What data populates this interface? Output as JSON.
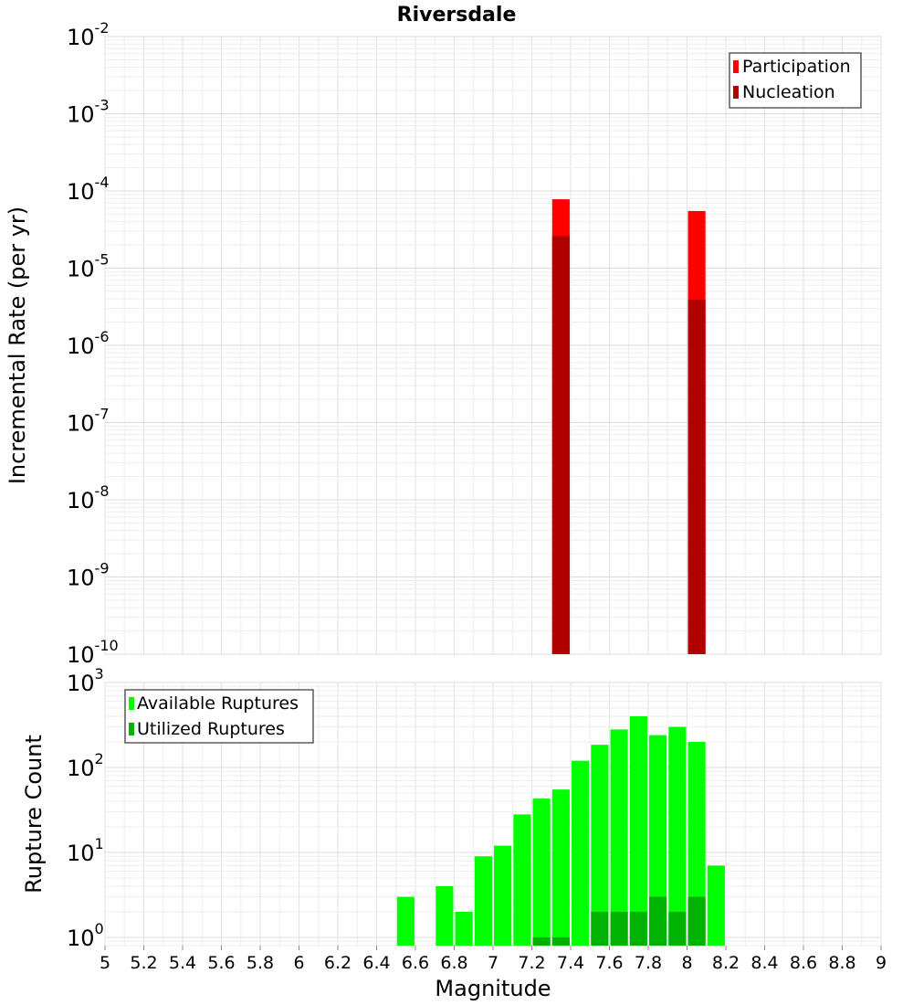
{
  "chart_data": [
    {
      "type": "bar",
      "title": "Riversdale",
      "ylabel": "Incremental Rate (per yr)",
      "xlabel": "",
      "yscale": "log",
      "ylim": [
        1e-10,
        0.01
      ],
      "xlim": [
        5,
        9
      ],
      "grid": true,
      "legend": "top-right",
      "y_ticks": [
        {
          "base": "10",
          "exp": "-10",
          "value": 1e-10
        },
        {
          "base": "10",
          "exp": "-9",
          "value": 1e-09
        },
        {
          "base": "10",
          "exp": "-8",
          "value": 1e-08
        },
        {
          "base": "10",
          "exp": "-7",
          "value": 1e-07
        },
        {
          "base": "10",
          "exp": "-6",
          "value": 1e-06
        },
        {
          "base": "10",
          "exp": "-5",
          "value": 1e-05
        },
        {
          "base": "10",
          "exp": "-4",
          "value": 0.0001
        },
        {
          "base": "10",
          "exp": "-3",
          "value": 0.001
        },
        {
          "base": "10",
          "exp": "-2",
          "value": 0.01
        }
      ],
      "bar_width": 0.09,
      "series": [
        {
          "name": "Participation",
          "color": "#ff0000",
          "points": [
            {
              "x": 7.35,
              "y": 7.8e-05
            },
            {
              "x": 8.05,
              "y": 5.5e-05
            }
          ]
        },
        {
          "name": "Nucleation",
          "color": "#b00000",
          "points": [
            {
              "x": 7.35,
              "y": 2.6e-05
            },
            {
              "x": 8.05,
              "y": 3.9e-06
            }
          ]
        }
      ]
    },
    {
      "type": "bar",
      "ylabel": "Rupture Count",
      "xlabel": "Magnitude",
      "yscale": "log",
      "ylim": [
        0.8,
        1000
      ],
      "xlim": [
        5,
        9
      ],
      "grid": true,
      "legend": "top-left",
      "x_ticks": [
        "5",
        "5.2",
        "5.4",
        "5.6",
        "5.8",
        "6",
        "6.2",
        "6.4",
        "6.6",
        "6.8",
        "7",
        "7.2",
        "7.4",
        "7.6",
        "7.8",
        "8",
        "8.2",
        "8.4",
        "8.6",
        "8.8",
        "9"
      ],
      "y_ticks": [
        {
          "base": "10",
          "exp": "0",
          "value": 1
        },
        {
          "base": "10",
          "exp": "1",
          "value": 10
        },
        {
          "base": "10",
          "exp": "2",
          "value": 100
        },
        {
          "base": "10",
          "exp": "3",
          "value": 1000
        }
      ],
      "bar_width": 0.09,
      "series": [
        {
          "name": "Available Ruptures",
          "color": "#00ff00",
          "points": [
            {
              "x": 6.55,
              "y": 3
            },
            {
              "x": 6.75,
              "y": 4
            },
            {
              "x": 6.85,
              "y": 2
            },
            {
              "x": 6.95,
              "y": 9
            },
            {
              "x": 7.05,
              "y": 12
            },
            {
              "x": 7.15,
              "y": 28
            },
            {
              "x": 7.25,
              "y": 43
            },
            {
              "x": 7.35,
              "y": 55
            },
            {
              "x": 7.45,
              "y": 120
            },
            {
              "x": 7.55,
              "y": 185
            },
            {
              "x": 7.65,
              "y": 280
            },
            {
              "x": 7.75,
              "y": 400
            },
            {
              "x": 7.85,
              "y": 240
            },
            {
              "x": 7.95,
              "y": 300
            },
            {
              "x": 8.05,
              "y": 200
            },
            {
              "x": 8.15,
              "y": 7
            }
          ]
        },
        {
          "name": "Utilized Ruptures",
          "color": "#00b200",
          "points": [
            {
              "x": 7.25,
              "y": 1
            },
            {
              "x": 7.35,
              "y": 1
            },
            {
              "x": 7.55,
              "y": 2
            },
            {
              "x": 7.65,
              "y": 2
            },
            {
              "x": 7.75,
              "y": 2
            },
            {
              "x": 7.85,
              "y": 3
            },
            {
              "x": 7.95,
              "y": 2
            },
            {
              "x": 8.05,
              "y": 3
            }
          ]
        }
      ]
    }
  ]
}
